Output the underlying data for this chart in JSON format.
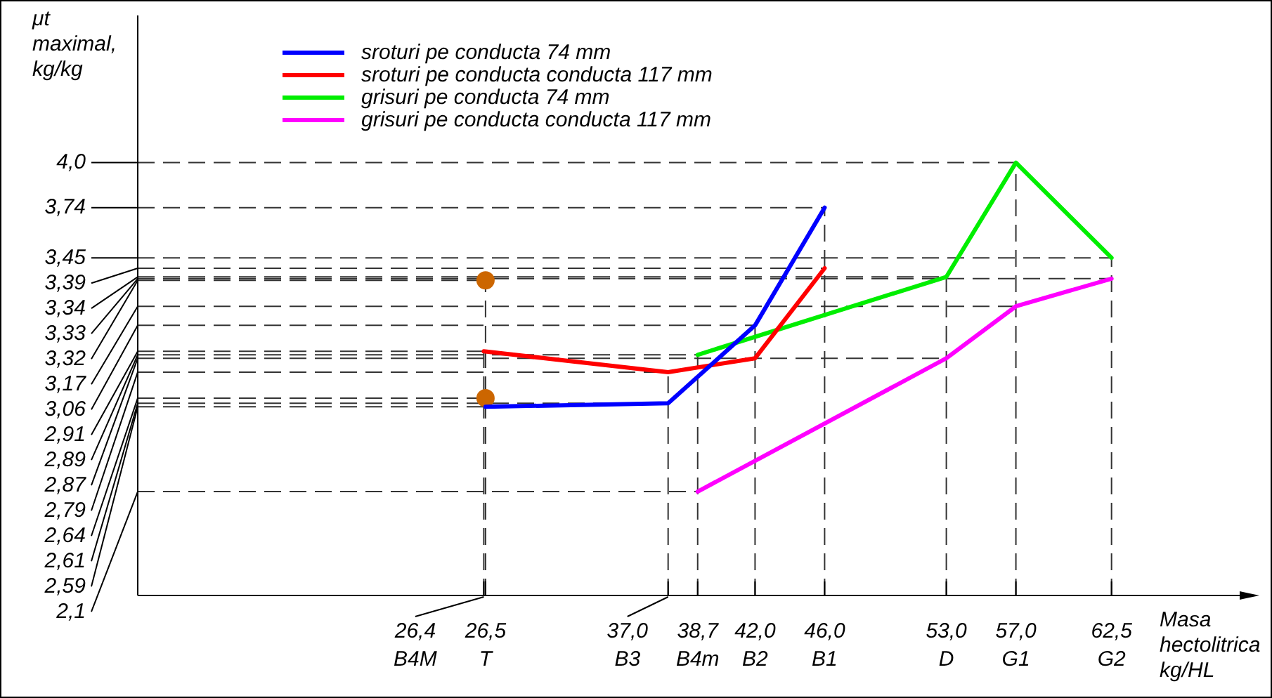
{
  "chart_data": {
    "type": "line",
    "xlabel": "Masa\nhectolitrica\nkg/HL",
    "ylabel": "μt\nmaximal,\nkg/kg",
    "legend": "top",
    "xlim": [
      6.5,
      71
    ],
    "ylim": [
      1.5,
      4.85
    ],
    "series": [
      {
        "name": "sroturi pe conducta 74 mm",
        "color": "#0000ff",
        "x": [
          26.5,
          37.0,
          42.0,
          46.0
        ],
        "values": [
          2.59,
          2.61,
          3.06,
          3.74
        ]
      },
      {
        "name": "sroturi pe conducta conducta 117 mm",
        "color": "#ff0000",
        "x": [
          26.4,
          37.0,
          42.0,
          46.0
        ],
        "values": [
          2.91,
          2.79,
          2.87,
          3.39
        ]
      },
      {
        "name": "grisuri pe conducta 74 mm",
        "color": "#00ee00",
        "x": [
          38.7,
          53.0,
          57.0,
          62.5
        ],
        "values": [
          2.89,
          3.34,
          4.0,
          3.45
        ]
      },
      {
        "name": "grisuri pe conducta conducta 117 mm",
        "color": "#ff00ff",
        "x": [
          38.7,
          53.0,
          57.0,
          62.5
        ],
        "values": [
          2.1,
          2.87,
          3.17,
          3.33
        ]
      },
      {
        "type": "scatter",
        "marker": "circle",
        "color": "#cc6600",
        "x": [
          26.5,
          26.5
        ],
        "values": [
          3.32,
          2.64
        ]
      }
    ],
    "yticks": [
      {
        "value": 4.0,
        "label": "4,0"
      },
      {
        "value": 3.74,
        "label": "3,74"
      }
    ],
    "xticks": [
      {
        "value": 38.7,
        "label": "38,7"
      },
      {
        "value": 42.0,
        "label": "42,0"
      },
      {
        "value": 46.0,
        "label": "46,0"
      },
      {
        "value": 53.0,
        "label": "53,0"
      },
      {
        "value": 57.0,
        "label": "57,0"
      },
      {
        "value": 62.5,
        "label": "62,5"
      }
    ],
    "ref_lines": [
      {
        "axis": "y",
        "value": 4.0
      },
      {
        "axis": "y",
        "value": 3.74
      },
      {
        "axis": "x",
        "value": 38.7
      },
      {
        "axis": "x",
        "value": 42.0
      },
      {
        "axis": "x",
        "value": 46.0
      },
      {
        "axis": "x",
        "value": 53.0
      },
      {
        "axis": "x",
        "value": 57.0
      },
      {
        "axis": "x",
        "value": 62.5
      },
      {
        "axis": "y",
        "value": 3.45,
        "label": "3,45"
      },
      {
        "axis": "y",
        "value": 3.39,
        "label": "3,39"
      },
      {
        "axis": "y",
        "value": 3.34,
        "label": "3,34"
      },
      {
        "axis": "y",
        "value": 3.33,
        "label": "3,33"
      },
      {
        "axis": "y",
        "value": 3.32,
        "label": "3,32"
      },
      {
        "axis": "y",
        "value": 3.17,
        "label": "3,17"
      },
      {
        "axis": "y",
        "value": 3.06,
        "label": "3,06"
      },
      {
        "axis": "y",
        "value": 2.91,
        "label": "2,91"
      },
      {
        "axis": "y",
        "value": 2.89,
        "label": "2,89"
      },
      {
        "axis": "y",
        "value": 2.87,
        "label": "2,87"
      },
      {
        "axis": "y",
        "value": 2.79,
        "label": "2,79"
      },
      {
        "axis": "y",
        "value": 2.64,
        "label": "2,64"
      },
      {
        "axis": "y",
        "value": 2.61,
        "label": "2,61"
      },
      {
        "axis": "y",
        "value": 2.59,
        "label": "2,59"
      },
      {
        "axis": "y",
        "value": 2.1,
        "label": "2,1"
      },
      {
        "axis": "x",
        "value": 26.4,
        "label": "26,4"
      },
      {
        "axis": "x",
        "value": 26.5,
        "label": "26,5"
      },
      {
        "axis": "x",
        "value": 37.0,
        "label": "37,0"
      }
    ],
    "annotations": [
      "B4M",
      "T",
      "B3",
      "B4m",
      "B2",
      "B1",
      "D",
      "G1",
      "G2"
    ]
  }
}
